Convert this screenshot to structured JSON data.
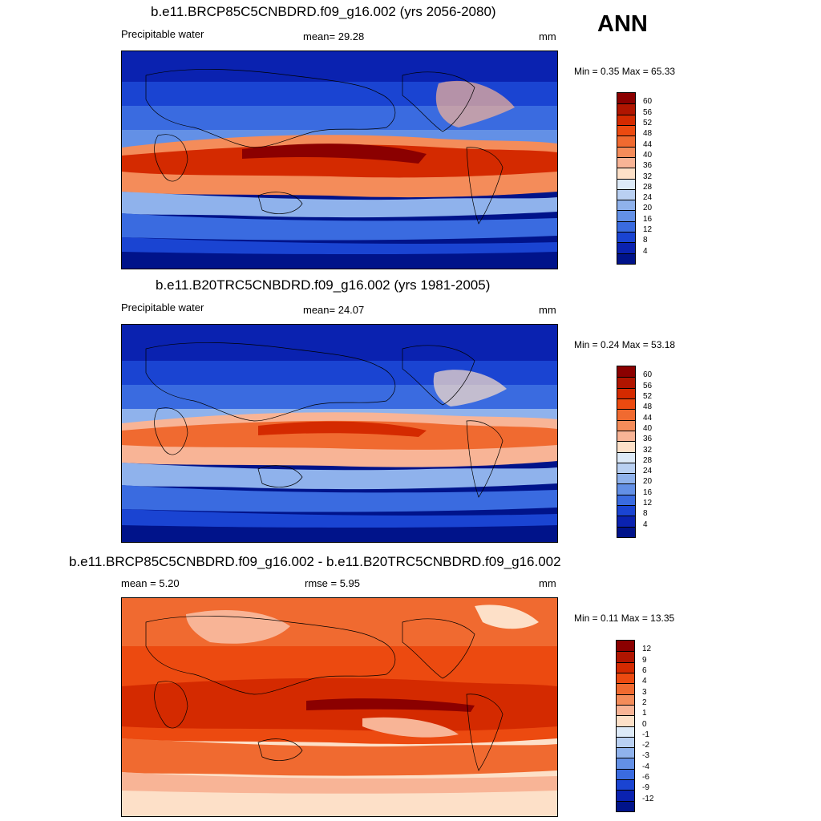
{
  "season_label": "ANN",
  "panels": [
    {
      "title": "b.e11.BRCP85C5CNBDRD.f09_g16.002 (yrs 2056-2080)",
      "variable": "Precipitable water",
      "stat_text": "mean=  29.28",
      "units": "mm",
      "minmax": "Min =   0.35 Max =  65.33",
      "colorbar": {
        "labels": [
          "60",
          "56",
          "52",
          "48",
          "44",
          "40",
          "36",
          "32",
          "28",
          "24",
          "20",
          "16",
          "12",
          "8",
          "4"
        ],
        "colors": [
          "#8b0000",
          "#b01500",
          "#d42a00",
          "#ec4a10",
          "#f06a30",
          "#f48c5a",
          "#f8b496",
          "#fde0c8",
          "#ddeaf8",
          "#b9d0f2",
          "#8fb2ec",
          "#6390e6",
          "#3a6be0",
          "#1a44d2",
          "#0a22b0",
          "#00138a"
        ]
      }
    },
    {
      "title": "b.e11.B20TRC5CNBDRD.f09_g16.002 (yrs 1981-2005)",
      "variable": "Precipitable water",
      "stat_text": "mean=  24.07",
      "units": "mm",
      "minmax": "Min =   0.24 Max =  53.18",
      "colorbar": {
        "labels": [
          "60",
          "56",
          "52",
          "48",
          "44",
          "40",
          "36",
          "32",
          "28",
          "24",
          "20",
          "16",
          "12",
          "8",
          "4"
        ],
        "colors": [
          "#8b0000",
          "#b01500",
          "#d42a00",
          "#ec4a10",
          "#f06a30",
          "#f48c5a",
          "#f8b496",
          "#fde0c8",
          "#ddeaf8",
          "#b9d0f2",
          "#8fb2ec",
          "#6390e6",
          "#3a6be0",
          "#1a44d2",
          "#0a22b0",
          "#00138a"
        ]
      }
    },
    {
      "title": "b.e11.BRCP85C5CNBDRD.f09_g16.002 - b.e11.B20TRC5CNBDRD.f09_g16.002",
      "stat_text": "mean =   5.20",
      "rmse_text": "rmse =   5.95",
      "units": "mm",
      "minmax": "Min =   0.11 Max =  13.35",
      "colorbar": {
        "labels": [
          "12",
          "9",
          "6",
          "4",
          "3",
          "2",
          "1",
          "0",
          "-1",
          "-2",
          "-3",
          "-4",
          "-6",
          "-9",
          "-12"
        ],
        "colors": [
          "#8b0000",
          "#b01500",
          "#d42a00",
          "#ec4a10",
          "#f06a30",
          "#f48c5a",
          "#f8b496",
          "#fde0c8",
          "#ddeaf8",
          "#b9d0f2",
          "#8fb2ec",
          "#6390e6",
          "#3a6be0",
          "#1a44d2",
          "#0a22b0",
          "#00138a"
        ]
      }
    }
  ]
}
